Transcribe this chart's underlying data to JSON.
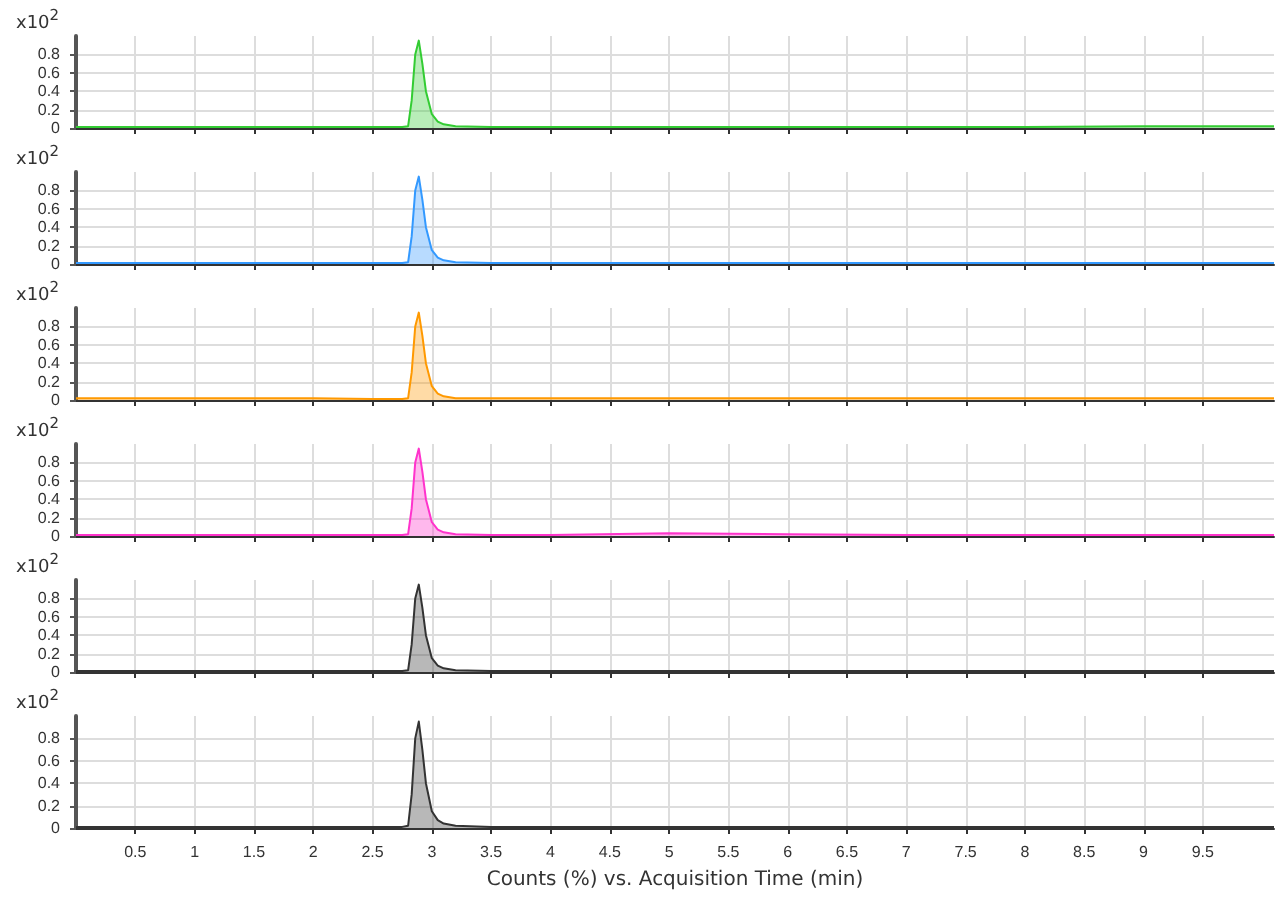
{
  "chart_data": [
    {
      "type": "area",
      "ylabel": "x10$^{2}$",
      "x": [
        0,
        0.5,
        1,
        1.5,
        2,
        2.5,
        2.75,
        2.8,
        2.83,
        2.86,
        2.89,
        2.92,
        2.95,
        3.0,
        3.05,
        3.1,
        3.2,
        3.5,
        4,
        5,
        6,
        7,
        8,
        9,
        10,
        10.1
      ],
      "series": [
        {
          "color": "#33cc33",
          "values": [
            0.01,
            0.01,
            0.01,
            0.01,
            0.01,
            0.01,
            0.01,
            0.02,
            0.3,
            0.8,
            0.95,
            0.7,
            0.4,
            0.15,
            0.07,
            0.04,
            0.02,
            0.01,
            0.01,
            0.01,
            0.01,
            0.01,
            0.01,
            0.02,
            0.02,
            0.02
          ]
        }
      ],
      "xlim": [
        0,
        10.1
      ],
      "ylim": [
        0,
        1
      ],
      "xticks": [
        0.5,
        1,
        1.5,
        2,
        2.5,
        3,
        3.5,
        4,
        4.5,
        5,
        5.5,
        6,
        6.5,
        7,
        7.5,
        8,
        8.5,
        9,
        9.5
      ],
      "yticks": [
        0,
        0.2,
        0.4,
        0.6,
        0.8
      ],
      "grid": true,
      "tick_labels": "y"
    },
    {
      "type": "area",
      "ylabel": "x10$^{2}$",
      "x": [
        0,
        0.5,
        1,
        1.5,
        2,
        2.5,
        2.75,
        2.8,
        2.83,
        2.86,
        2.89,
        2.92,
        2.95,
        3.0,
        3.05,
        3.1,
        3.2,
        3.5,
        4,
        5,
        6,
        7,
        8,
        9,
        10,
        10.1
      ],
      "series": [
        {
          "color": "#3399ff",
          "values": [
            0.01,
            0.01,
            0.01,
            0.01,
            0.01,
            0.01,
            0.01,
            0.02,
            0.3,
            0.8,
            0.95,
            0.7,
            0.4,
            0.15,
            0.07,
            0.04,
            0.02,
            0.01,
            0.01,
            0.01,
            0.01,
            0.01,
            0.01,
            0.01,
            0.01,
            0.01
          ]
        }
      ],
      "xlim": [
        0,
        10.1
      ],
      "ylim": [
        0,
        1
      ],
      "xticks": [
        0.5,
        1,
        1.5,
        2,
        2.5,
        3,
        3.5,
        4,
        4.5,
        5,
        5.5,
        6,
        6.5,
        7,
        7.5,
        8,
        8.5,
        9,
        9.5
      ],
      "yticks": [
        0,
        0.2,
        0.4,
        0.6,
        0.8
      ],
      "grid": true,
      "tick_labels": "y"
    },
    {
      "type": "area",
      "ylabel": "x10$^{2}$",
      "x": [
        0,
        0.5,
        1,
        1.5,
        2,
        2.5,
        2.75,
        2.8,
        2.83,
        2.86,
        2.89,
        2.92,
        2.95,
        3.0,
        3.05,
        3.1,
        3.2,
        3.5,
        4,
        5,
        6,
        7,
        8,
        9,
        10,
        10.1
      ],
      "series": [
        {
          "color": "#ff9900",
          "values": [
            0.02,
            0.02,
            0.02,
            0.02,
            0.02,
            0.01,
            0.01,
            0.02,
            0.3,
            0.8,
            0.95,
            0.7,
            0.4,
            0.15,
            0.07,
            0.04,
            0.02,
            0.02,
            0.02,
            0.02,
            0.02,
            0.02,
            0.02,
            0.02,
            0.02,
            0.02
          ]
        }
      ],
      "xlim": [
        0,
        10.1
      ],
      "ylim": [
        0,
        1
      ],
      "xticks": [
        0.5,
        1,
        1.5,
        2,
        2.5,
        3,
        3.5,
        4,
        4.5,
        5,
        5.5,
        6,
        6.5,
        7,
        7.5,
        8,
        8.5,
        9,
        9.5
      ],
      "yticks": [
        0,
        0.2,
        0.4,
        0.6,
        0.8
      ],
      "grid": true,
      "tick_labels": "y"
    },
    {
      "type": "area",
      "ylabel": "x10$^{2}$",
      "x": [
        0,
        0.5,
        1,
        1.5,
        2,
        2.5,
        2.75,
        2.8,
        2.83,
        2.86,
        2.89,
        2.92,
        2.95,
        3.0,
        3.05,
        3.1,
        3.2,
        3.5,
        4,
        5,
        6,
        7,
        8,
        9,
        10,
        10.1
      ],
      "series": [
        {
          "color": "#ff33cc",
          "values": [
            0.01,
            0.01,
            0.01,
            0.01,
            0.01,
            0.01,
            0.01,
            0.02,
            0.3,
            0.8,
            0.95,
            0.7,
            0.4,
            0.15,
            0.07,
            0.04,
            0.02,
            0.01,
            0.01,
            0.03,
            0.02,
            0.01,
            0.01,
            0.01,
            0.01,
            0.01
          ]
        }
      ],
      "xlim": [
        0,
        10.1
      ],
      "ylim": [
        0,
        1
      ],
      "xticks": [
        0.5,
        1,
        1.5,
        2,
        2.5,
        3,
        3.5,
        4,
        4.5,
        5,
        5.5,
        6,
        6.5,
        7,
        7.5,
        8,
        8.5,
        9,
        9.5
      ],
      "yticks": [
        0,
        0.2,
        0.4,
        0.6,
        0.8
      ],
      "grid": true,
      "tick_labels": "y"
    },
    {
      "type": "area",
      "ylabel": "x10$^{2}$",
      "x": [
        0,
        0.5,
        1,
        1.5,
        2,
        2.5,
        2.75,
        2.8,
        2.83,
        2.86,
        2.89,
        2.92,
        2.95,
        3.0,
        3.05,
        3.1,
        3.2,
        3.5,
        4,
        5,
        6,
        7,
        8,
        9,
        10,
        10.1
      ],
      "series": [
        {
          "color": "#333333",
          "values": [
            0.01,
            0.01,
            0.01,
            0.01,
            0.01,
            0.01,
            0.01,
            0.02,
            0.3,
            0.8,
            0.95,
            0.7,
            0.4,
            0.15,
            0.07,
            0.04,
            0.02,
            0.01,
            0.01,
            0.01,
            0.01,
            0.01,
            0.01,
            0.01,
            0.01,
            0.01
          ]
        }
      ],
      "xlim": [
        0,
        10.1
      ],
      "ylim": [
        0,
        1
      ],
      "xticks": [
        0.5,
        1,
        1.5,
        2,
        2.5,
        3,
        3.5,
        4,
        4.5,
        5,
        5.5,
        6,
        6.5,
        7,
        7.5,
        8,
        8.5,
        9,
        9.5
      ],
      "yticks": [
        0,
        0.2,
        0.4,
        0.6,
        0.8
      ],
      "grid": true,
      "tick_labels": "y"
    },
    {
      "type": "area",
      "ylabel": "x10$^{2}$",
      "xlabel": "Counts (%) vs. Acquisition Time (min)",
      "x": [
        0,
        0.5,
        1,
        1.5,
        2,
        2.5,
        2.75,
        2.8,
        2.83,
        2.86,
        2.89,
        2.92,
        2.95,
        3.0,
        3.05,
        3.1,
        3.2,
        3.5,
        4,
        5,
        6,
        7,
        8,
        9,
        10,
        10.1
      ],
      "series": [
        {
          "color": "#333333",
          "values": [
            0.01,
            0.01,
            0.01,
            0.01,
            0.01,
            0.01,
            0.01,
            0.02,
            0.3,
            0.8,
            0.95,
            0.7,
            0.4,
            0.15,
            0.07,
            0.04,
            0.02,
            0.01,
            0.01,
            0.01,
            0.01,
            0.01,
            0.01,
            0.01,
            0.01,
            0.01
          ]
        }
      ],
      "xlim": [
        0,
        10.1
      ],
      "ylim": [
        0,
        1
      ],
      "xticks": [
        0.5,
        1,
        1.5,
        2,
        2.5,
        3,
        3.5,
        4,
        4.5,
        5,
        5.5,
        6,
        6.5,
        7,
        7.5,
        8,
        8.5,
        9,
        9.5
      ],
      "yticks": [
        0,
        0.2,
        0.4,
        0.6,
        0.8
      ],
      "grid": true
    }
  ]
}
